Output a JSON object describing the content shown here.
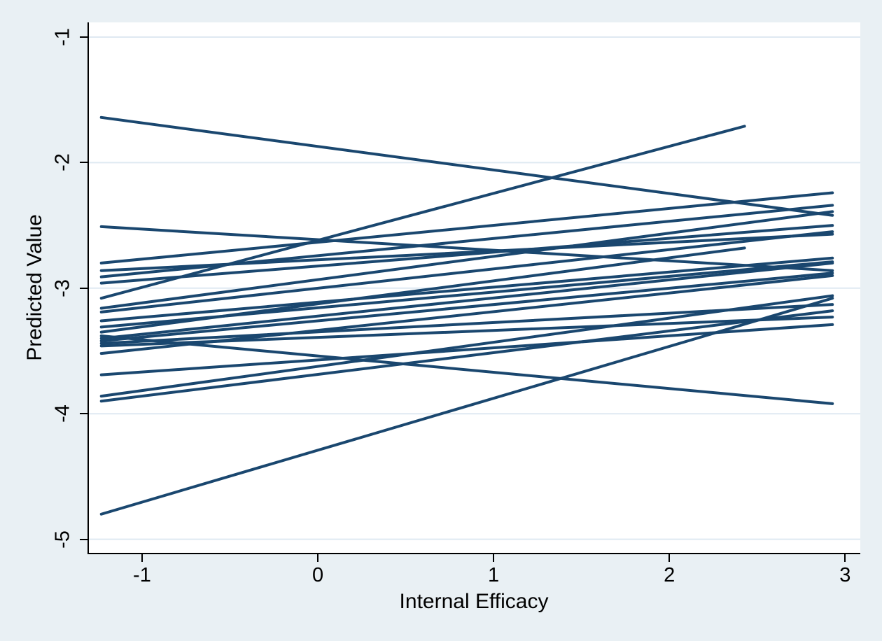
{
  "figure": {
    "background_color": "#e9f0f4",
    "plot_background_color": "#ffffff",
    "axis_color": "#000000",
    "grid_color": "#dfe9f2",
    "line_color": "#1a476f"
  },
  "chart_data": {
    "type": "line",
    "title": "",
    "xlabel": "Internal Efficacy",
    "ylabel": "Predicted Value",
    "x_ticks": [
      -1,
      0,
      1,
      2,
      3
    ],
    "x_tick_labels": [
      "-1",
      "0",
      "1",
      "2",
      "3"
    ],
    "y_ticks": [
      -1,
      -2,
      -3,
      -4,
      -5
    ],
    "y_tick_labels": [
      "-1",
      "-2",
      "-3",
      "-4",
      "-5"
    ],
    "xlim": [
      -1.3105,
      3.0785
    ],
    "ylim": [
      -5.108,
      -0.883
    ],
    "grid": "horizontal gridlines at y ticks",
    "legend": "none",
    "description": "Spaghetti plot of per-group fitted regression lines of Predicted Value on Internal Efficacy",
    "lines": [
      {
        "x": [
          -1.24,
          2.92
        ],
        "y": [
          -1.64,
          -2.42
        ]
      },
      {
        "x": [
          -1.24,
          2.92
        ],
        "y": [
          -2.51,
          -2.86
        ]
      },
      {
        "x": [
          -1.24,
          2.92
        ],
        "y": [
          -2.8,
          -2.24
        ]
      },
      {
        "x": [
          -1.24,
          2.92
        ],
        "y": [
          -2.86,
          -2.57
        ]
      },
      {
        "x": [
          -1.24,
          2.92
        ],
        "y": [
          -2.91,
          -2.34
        ]
      },
      {
        "x": [
          -1.24,
          2.92
        ],
        "y": [
          -2.96,
          -2.5
        ]
      },
      {
        "x": [
          -1.24,
          2.42
        ],
        "y": [
          -3.08,
          -1.71
        ]
      },
      {
        "x": [
          -1.24,
          2.92
        ],
        "y": [
          -3.16,
          -2.39
        ]
      },
      {
        "x": [
          -1.24,
          2.92
        ],
        "y": [
          -3.19,
          -2.55
        ]
      },
      {
        "x": [
          -1.24,
          2.92
        ],
        "y": [
          -3.26,
          -2.76
        ]
      },
      {
        "x": [
          -1.24,
          2.92
        ],
        "y": [
          -3.31,
          -2.79
        ]
      },
      {
        "x": [
          -1.24,
          2.42
        ],
        "y": [
          -3.35,
          -2.68
        ]
      },
      {
        "x": [
          -1.24,
          2.92
        ],
        "y": [
          -3.38,
          -3.92
        ]
      },
      {
        "x": [
          -1.24,
          2.92
        ],
        "y": [
          -3.4,
          -2.8
        ]
      },
      {
        "x": [
          -1.24,
          2.92
        ],
        "y": [
          -3.42,
          -2.88
        ]
      },
      {
        "x": [
          -1.24,
          2.92
        ],
        "y": [
          -3.44,
          -3.13
        ]
      },
      {
        "x": [
          -1.24,
          2.92
        ],
        "y": [
          -3.46,
          -3.23
        ]
      },
      {
        "x": [
          -1.24,
          2.92
        ],
        "y": [
          -3.52,
          -2.9
        ]
      },
      {
        "x": [
          -1.24,
          2.92
        ],
        "y": [
          -3.69,
          -3.29
        ]
      },
      {
        "x": [
          -1.24,
          2.92
        ],
        "y": [
          -3.86,
          -3.06
        ]
      },
      {
        "x": [
          -1.24,
          2.92
        ],
        "y": [
          -3.9,
          -3.18
        ]
      },
      {
        "x": [
          -1.24,
          2.92
        ],
        "y": [
          -4.8,
          -3.08
        ]
      }
    ]
  }
}
